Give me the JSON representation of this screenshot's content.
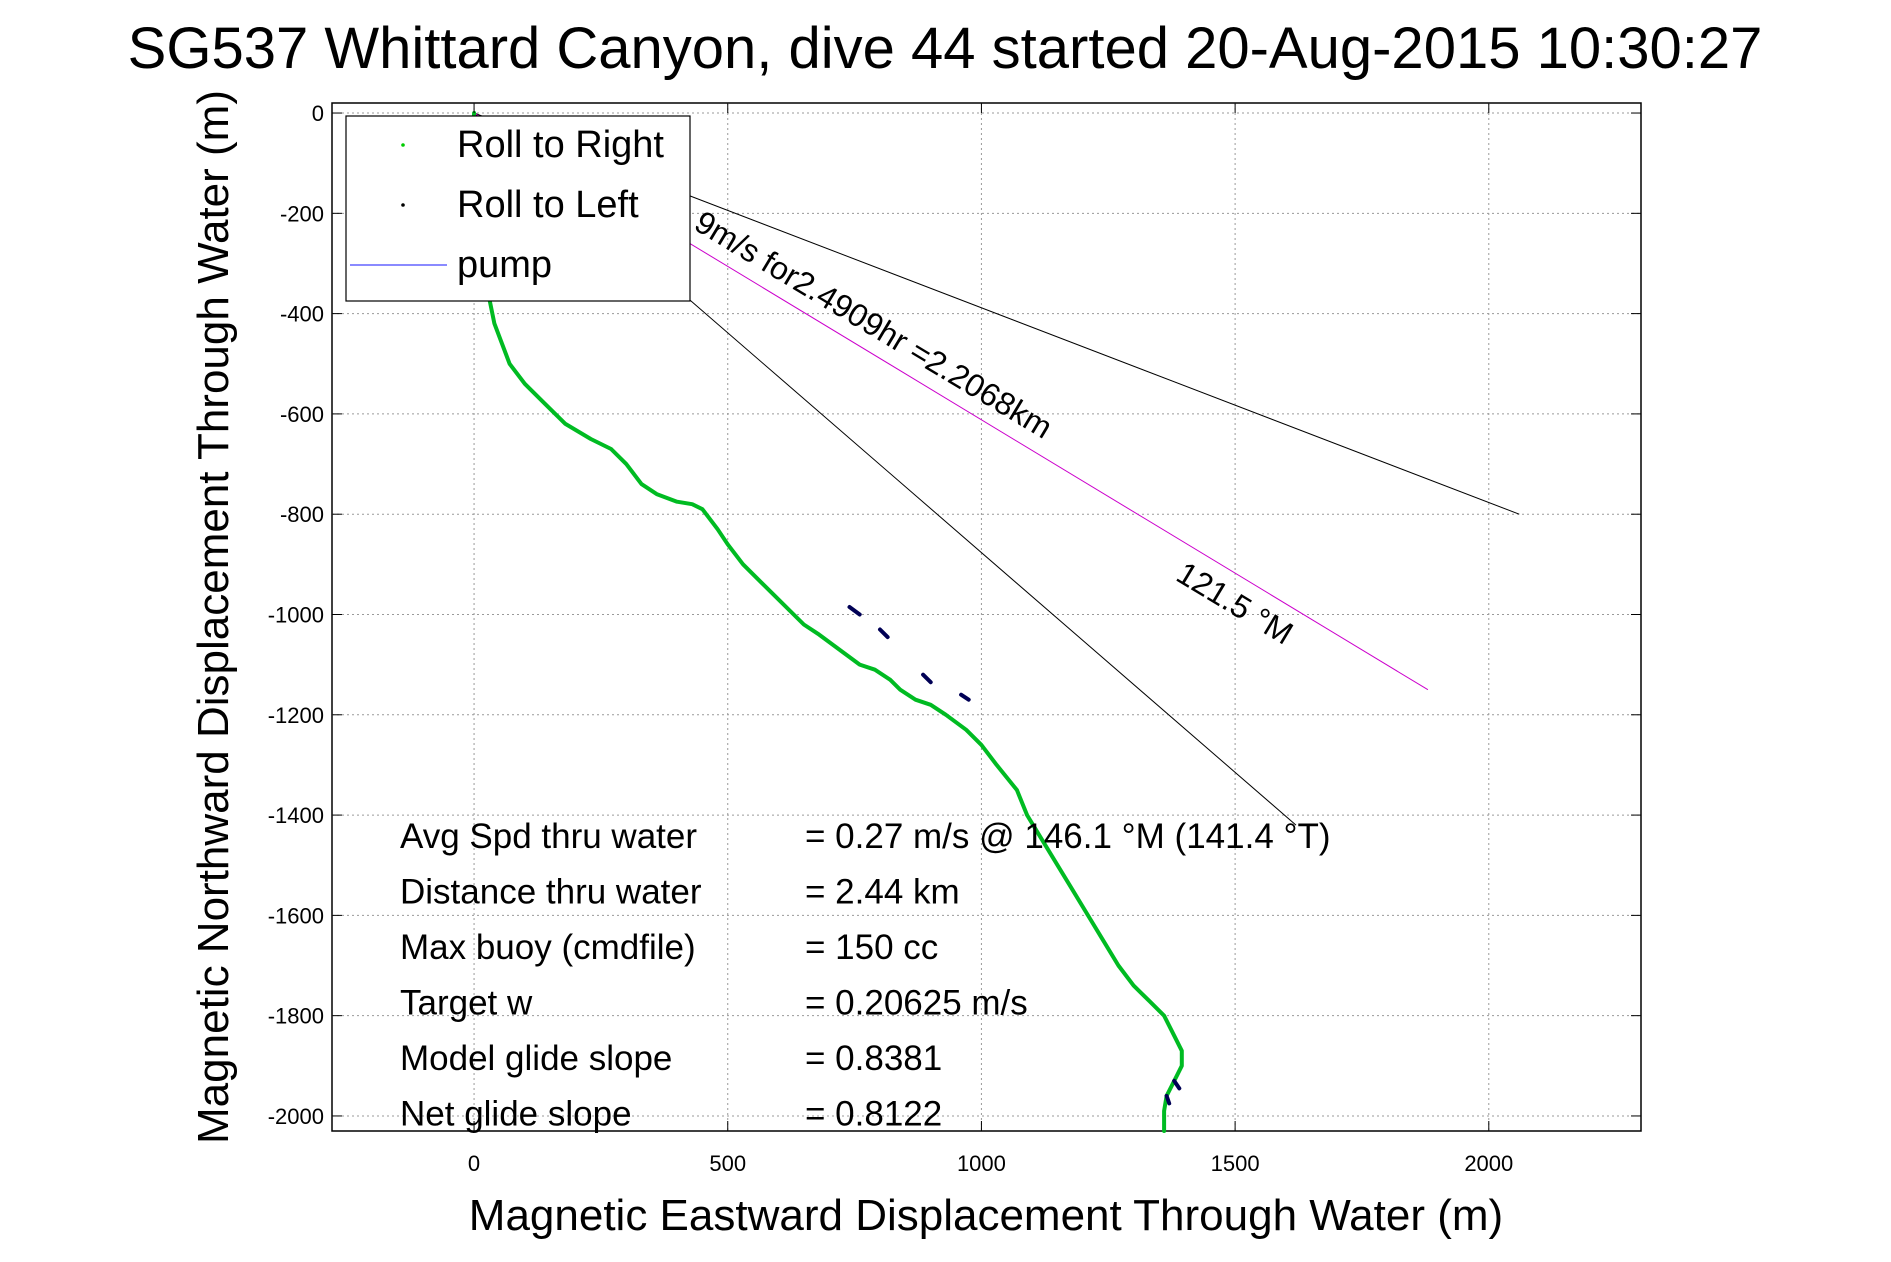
{
  "figure": {
    "title": "SG537 Whittard Canyon, dive 44 started 20-Aug-2015 10:30:27",
    "background": "#ffffff"
  },
  "chart_data": {
    "type": "line",
    "title": "SG537 Whittard Canyon, dive 44 started 20-Aug-2015 10:30:27",
    "xlabel": "Magnetic Eastward Displacement Through Water (m)",
    "ylabel": "Magnetic Northward Displacement Through Water (m)",
    "xlim": [
      -280,
      2300
    ],
    "ylim": [
      -2030,
      20
    ],
    "xticks": [
      0,
      500,
      1000,
      1500,
      2000
    ],
    "xtick_labels": [
      "0",
      "500",
      "1000",
      "1500",
      "2000"
    ],
    "yticks": [
      0,
      -200,
      -400,
      -600,
      -800,
      -1000,
      -1200,
      -1400,
      -1600,
      -1800,
      -2000
    ],
    "ytick_labels": [
      "0",
      "-200",
      "-400",
      "-600",
      "-800",
      "-1000",
      "-1200",
      "-1400",
      "-1600",
      "-1800",
      "-2000"
    ],
    "grid": true,
    "legend_position": "top-left",
    "legend": [
      {
        "label": "Roll to Right",
        "color": "#00cc00",
        "marker": "dot"
      },
      {
        "label": "Roll to Left",
        "color": "#000000",
        "marker": "dot"
      },
      {
        "label": "pump",
        "color": "#4444ff",
        "marker": "line"
      }
    ],
    "series": [
      {
        "name": "Roll to Right",
        "color": "#00bb22",
        "x": [
          0,
          -5,
          5,
          20,
          40,
          70,
          100,
          140,
          180,
          230,
          270,
          300,
          330,
          360,
          400,
          430,
          450,
          480,
          500,
          530,
          560,
          590,
          630,
          650,
          680,
          720,
          760,
          790,
          820,
          840,
          870,
          900,
          930,
          970,
          1000,
          1030,
          1070,
          1090,
          1120,
          1150,
          1180,
          1210,
          1240,
          1270,
          1300,
          1330,
          1360,
          1380,
          1395,
          1395,
          1385,
          1375,
          1365,
          1360,
          1360
        ],
        "y": [
          0,
          -100,
          -200,
          -320,
          -420,
          -500,
          -540,
          -580,
          -620,
          -650,
          -670,
          -700,
          -740,
          -760,
          -775,
          -780,
          -790,
          -830,
          -860,
          -900,
          -930,
          -960,
          -1000,
          -1020,
          -1040,
          -1070,
          -1100,
          -1110,
          -1130,
          -1150,
          -1170,
          -1180,
          -1200,
          -1230,
          -1260,
          -1300,
          -1350,
          -1400,
          -1450,
          -1500,
          -1550,
          -1600,
          -1650,
          -1700,
          -1740,
          -1770,
          -1800,
          -1840,
          -1870,
          -1900,
          -1920,
          -1940,
          -1960,
          -1990,
          -2030
        ]
      },
      {
        "name": "Roll to Left",
        "color": "#000055",
        "segments": [
          {
            "x": [
              740,
              760
            ],
            "y": [
              -985,
              -1000
            ]
          },
          {
            "x": [
              800,
              815
            ],
            "y": [
              -1030,
              -1045
            ]
          },
          {
            "x": [
              885,
              900
            ],
            "y": [
              -1120,
              -1135
            ]
          },
          {
            "x": [
              960,
              975
            ],
            "y": [
              -1160,
              -1170
            ]
          },
          {
            "x": [
              1380,
              1390
            ],
            "y": [
              -1930,
              -1945
            ]
          },
          {
            "x": [
              1365,
              1370
            ],
            "y": [
              -1960,
              -1975
            ]
          }
        ]
      },
      {
        "name": "pump",
        "color": "#4444ff",
        "x": [],
        "y": []
      }
    ],
    "reference_lines": [
      {
        "color": "#000000",
        "x": [
          0,
          2060
        ],
        "y": [
          0,
          -800
        ]
      },
      {
        "color": "#000000",
        "x": [
          0,
          1620
        ],
        "y": [
          0,
          -1420
        ]
      },
      {
        "color": "#cc00cc",
        "x": [
          0,
          1880
        ],
        "y": [
          0,
          -1150
        ]
      }
    ],
    "annotations": [
      {
        "text": "9m/s for2.4909hr =2.2068km",
        "x": 430,
        "y": -230,
        "angle_deg": 31
      },
      {
        "text": "121.5 °M",
        "x": 1380,
        "y": -930,
        "angle_deg": 31
      }
    ],
    "stats": [
      {
        "label": "Avg Spd thru water",
        "value": "=  0.27 m/s @ 146.1 °M (141.4 °T)"
      },
      {
        "label": "Distance thru water",
        "value": "=  2.44 km"
      },
      {
        "label": "Max buoy (cmdfile)",
        "value": "= 150 cc"
      },
      {
        "label": "Target w",
        "value": "= 0.20625 m/s"
      },
      {
        "label": "Model glide slope",
        "value": "= 0.8381"
      },
      {
        "label": "Net glide slope",
        "value": "= 0.8122"
      }
    ]
  }
}
